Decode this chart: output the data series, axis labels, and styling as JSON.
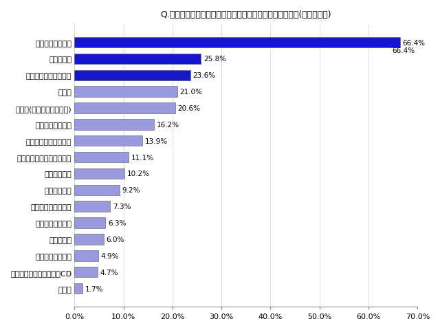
{
  "title": "Q.父の日にどんな疲労解消グッズを欲しいと思いますか？(複数回答可)",
  "categories": [
    "マッサージチェア",
    "安眠グッズ",
    "フットマッサージャー",
    "入浴剤",
    "治療器(低周波・電気など)",
    "ストレッチグッズ",
    "マッサージクッション",
    "その他小型マッサージ商品",
    "サプリメント",
    "アロマやお香",
    "フィットネスグッズ",
    "健康アクセサリー",
    "フットバス",
    "欲しいと思わない",
    "ヒーリングミュージックCD",
    "その他"
  ],
  "values": [
    66.4,
    25.8,
    23.6,
    21.0,
    20.6,
    16.2,
    13.9,
    11.1,
    10.2,
    9.2,
    7.3,
    6.3,
    6.0,
    4.9,
    4.7,
    1.7
  ],
  "bar_colors": [
    "#1616cc",
    "#1616cc",
    "#1616cc",
    "#9999dd",
    "#9999dd",
    "#9999dd",
    "#9999dd",
    "#9999dd",
    "#9999dd",
    "#9999dd",
    "#9999dd",
    "#9999dd",
    "#9999dd",
    "#9999dd",
    "#9999dd",
    "#9999dd"
  ],
  "xlim": [
    0,
    70
  ],
  "xticks": [
    0,
    10,
    20,
    30,
    40,
    50,
    60,
    70
  ],
  "xtick_labels": [
    "0.0%",
    "10.0%",
    "20.0%",
    "30.0%",
    "40.0%",
    "50.0%",
    "60.0%",
    "70.0%"
  ],
  "background_color": "#ffffff",
  "title_fontsize": 9,
  "value_fontsize": 7.5,
  "tick_fontsize": 8,
  "bar_height": 0.65
}
